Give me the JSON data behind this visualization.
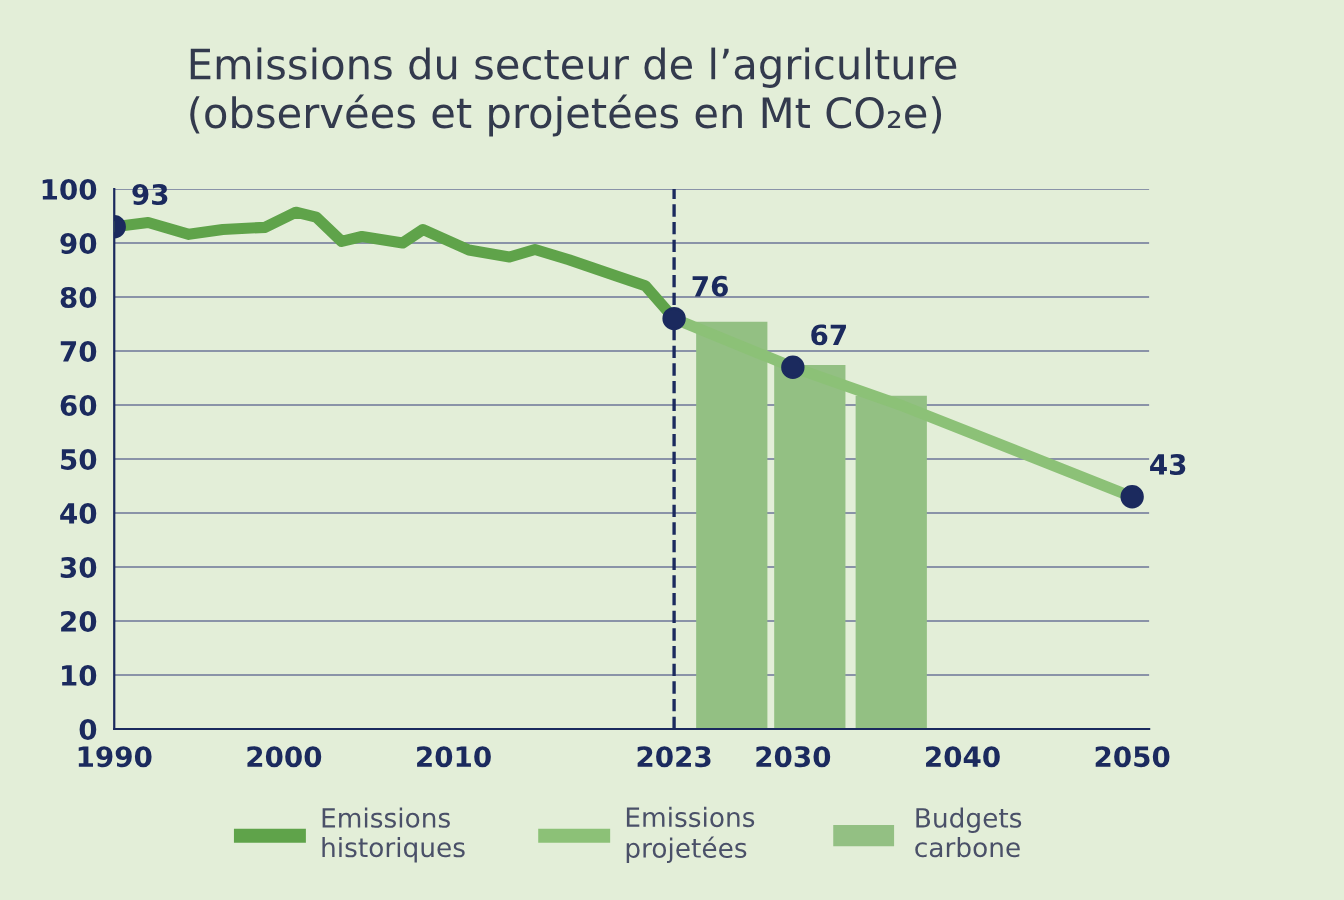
{
  "chart_data": {
    "type": "line",
    "title": "Emissions du secteur de l’agriculture\n(observées et projetées en Mt CO₂e)",
    "xlim": [
      1990,
      2051
    ],
    "xticks": [
      1990,
      2000,
      2010,
      2023,
      2030,
      2040,
      2050
    ],
    "ylim": [
      0,
      100
    ],
    "yticks": [
      0,
      10,
      20,
      30,
      40,
      50,
      60,
      70,
      80,
      90,
      100
    ],
    "grid": "y",
    "legend": "bottom",
    "ref_lines": [
      {
        "axis": "x",
        "value": 2023,
        "color": "#1b2a5e",
        "line_style": "dashed"
      }
    ],
    "series": [
      {
        "name": "Budgets carbone",
        "type": "bar",
        "color": "#93c083",
        "x": [
          2026.4,
          2031,
          2035.8
        ],
        "values": [
          75.4,
          67.4,
          61.7
        ]
      },
      {
        "name": "Emissions historiques",
        "color": "#5fa34a",
        "x": [
          1990,
          1992,
          1994.4,
          1996.4,
          1998.9,
          2000.7,
          2001.9,
          2003.4,
          2004.6,
          2007,
          2008.2,
          2010.9,
          2013.3,
          2014.8,
          2016.8,
          2019.6,
          2021.3,
          2023
        ],
        "values": [
          93,
          93.8,
          91.6,
          92.5,
          92.9,
          95.7,
          94.8,
          90.3,
          91.2,
          90.0,
          92.5,
          88.7,
          87.4,
          88.8,
          86.9,
          83.9,
          82.1,
          76
        ]
      },
      {
        "name": "Emissions projetées",
        "color": "#8cc177",
        "x": [
          2023,
          2030,
          2036.5,
          2050
        ],
        "values": [
          76,
          67,
          59.8,
          43
        ]
      },
      {
        "type": "scatter",
        "color": "#1b2a5e",
        "x": [
          1990,
          2023,
          2030,
          2050
        ],
        "values": [
          93,
          76,
          67,
          43
        ],
        "value_labels": [
          "93",
          "76",
          "67",
          "43"
        ]
      }
    ]
  }
}
